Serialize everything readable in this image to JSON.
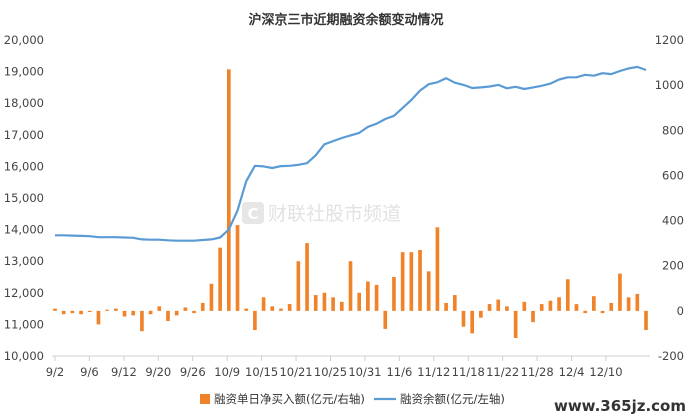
{
  "chart_data": {
    "type": "bar+line",
    "title": "沪深京三市近期融资余额变动情况",
    "left_axis": {
      "ticks": [
        "10,000",
        "11,000",
        "12,000",
        "13,000",
        "14,000",
        "15,000",
        "16,000",
        "17,000",
        "18,000",
        "19,000",
        "20,000"
      ],
      "ylim": [
        10000,
        20000
      ]
    },
    "right_axis": {
      "ticks": [
        "-200",
        "0",
        "200",
        "400",
        "600",
        "800",
        "1000",
        "1200"
      ],
      "ylim": [
        -200,
        1200
      ]
    },
    "x_ticks": [
      "9/2",
      "9/6",
      "9/12",
      "9/20",
      "9/26",
      "10/9",
      "10/15",
      "10/21",
      "10/25",
      "10/31",
      "11/6",
      "11/12",
      "11/18",
      "11/22",
      "11/28",
      "12/4",
      "12/10"
    ],
    "series": [
      {
        "name": "融资单日净买入额(亿元/右轴)",
        "type": "bar",
        "axis": "right",
        "color": "#f0822a",
        "values": [
          10,
          -15,
          -10,
          -15,
          -5,
          -60,
          5,
          10,
          -25,
          -20,
          -90,
          -15,
          20,
          -45,
          -20,
          15,
          -10,
          35,
          120,
          280,
          1070,
          380,
          10,
          -85,
          60,
          20,
          10,
          30,
          220,
          300,
          70,
          80,
          60,
          40,
          220,
          80,
          130,
          115,
          -80,
          150,
          260,
          260,
          270,
          175,
          370,
          35,
          70,
          -70,
          -100,
          -30,
          30,
          50,
          20,
          -120,
          40,
          -50,
          30,
          45,
          60,
          140,
          30,
          -10,
          65,
          -10,
          35,
          165,
          60,
          75,
          -85
        ]
      },
      {
        "name": "融资余额(亿元/左轴)",
        "type": "line",
        "axis": "left",
        "color": "#5b9bd5",
        "values": [
          13820,
          13820,
          13810,
          13800,
          13790,
          13760,
          13760,
          13760,
          13750,
          13740,
          13690,
          13680,
          13680,
          13660,
          13650,
          13650,
          13650,
          13670,
          13690,
          13750,
          14000,
          14600,
          15530,
          16020,
          16000,
          15950,
          16010,
          16020,
          16050,
          16100,
          16350,
          16700,
          16800,
          16900,
          16980,
          17060,
          17250,
          17350,
          17500,
          17600,
          17850,
          18100,
          18400,
          18600,
          18660,
          18790,
          18650,
          18580,
          18480,
          18500,
          18530,
          18580,
          18470,
          18520,
          18450,
          18500,
          18550,
          18620,
          18750,
          18820,
          18820,
          18900,
          18870,
          18950,
          18920,
          19020,
          19100,
          19150,
          19050
        ]
      }
    ],
    "legend_placement": "bottom",
    "grid": false
  },
  "watermark": {
    "text": "财联社股市频道",
    "logo_letter": "C"
  },
  "site": "www.365jz.com"
}
